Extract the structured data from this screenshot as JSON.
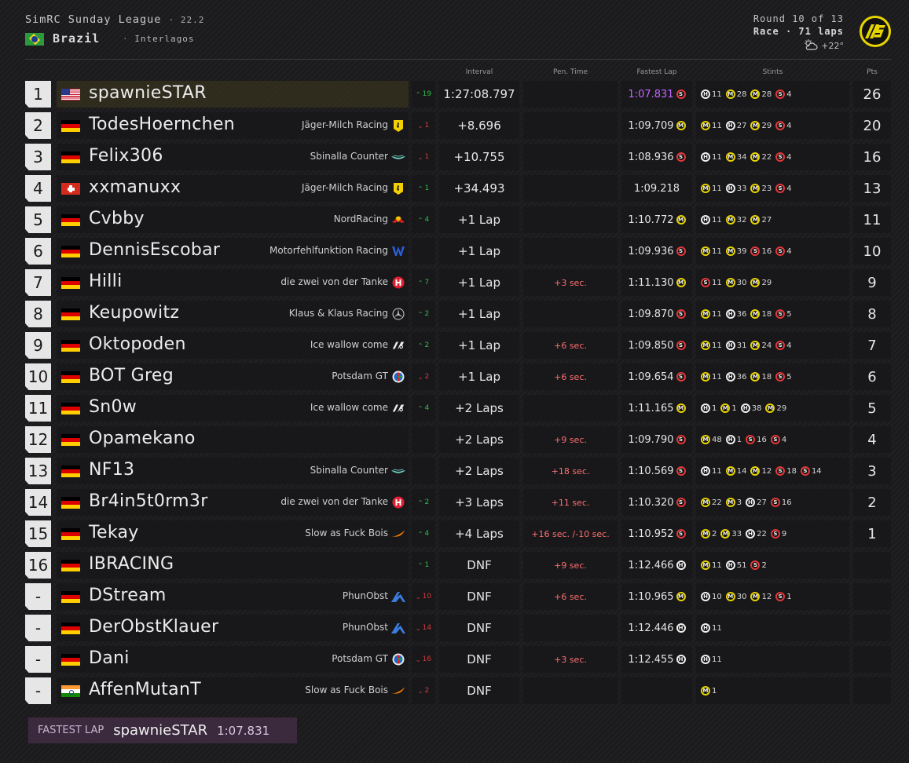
{
  "header": {
    "league": "SimRC Sunday League",
    "season": "· 22.2",
    "country": "Brazil",
    "track": "Interlagos",
    "round": "Round 10 of 13",
    "race": "Race · 71 laps",
    "weather_temp": "+22°",
    "weather_icon": "partly-cloudy-icon"
  },
  "columns": {
    "interval": "Interval",
    "penalty": "Pen. Time",
    "fastest": "Fastest Lap",
    "stints": "Stints",
    "points": "Pts"
  },
  "rows": [
    {
      "pos": "1",
      "flag": "us",
      "driver": "spawnieSTAR",
      "team": "",
      "team_icon": "",
      "chg_dir": "up",
      "chg": "19",
      "interval": "1:27:08.797",
      "penalty": "",
      "fastest": "1:07.831",
      "fl_tyre": "S",
      "fl_best": true,
      "stints": [
        [
          "H",
          "11"
        ],
        [
          "M",
          "28"
        ],
        [
          "M",
          "28"
        ],
        [
          "S",
          "4"
        ]
      ],
      "pts": "26"
    },
    {
      "pos": "2",
      "flag": "de",
      "driver": "TodesHoernchen",
      "team": "Jäger-Milch Racing",
      "team_icon": "ferrari",
      "chg_dir": "dn",
      "chg": "1",
      "interval": "+8.696",
      "penalty": "",
      "fastest": "1:09.709",
      "fl_tyre": "M",
      "stints": [
        [
          "M",
          "11"
        ],
        [
          "H",
          "27"
        ],
        [
          "M",
          "29"
        ],
        [
          "S",
          "4"
        ]
      ],
      "pts": "20"
    },
    {
      "pos": "3",
      "flag": "de",
      "driver": "Felix306",
      "team": "Sbinalla Counter",
      "team_icon": "astonmartin",
      "chg_dir": "dn",
      "chg": "1",
      "interval": "+10.755",
      "penalty": "",
      "fastest": "1:08.936",
      "fl_tyre": "S",
      "stints": [
        [
          "H",
          "11"
        ],
        [
          "M",
          "34"
        ],
        [
          "M",
          "22"
        ],
        [
          "S",
          "4"
        ]
      ],
      "pts": "16"
    },
    {
      "pos": "4",
      "flag": "ch",
      "driver": "xxmanuxx",
      "team": "Jäger-Milch Racing",
      "team_icon": "ferrari",
      "chg_dir": "up",
      "chg": "1",
      "interval": "+34.493",
      "penalty": "",
      "fastest": "1:09.218",
      "fl_tyre": "",
      "stints": [
        [
          "M",
          "11"
        ],
        [
          "H",
          "33"
        ],
        [
          "M",
          "23"
        ],
        [
          "S",
          "4"
        ]
      ],
      "pts": "13"
    },
    {
      "pos": "5",
      "flag": "de",
      "driver": "Cvbby",
      "team": "NordRacing",
      "team_icon": "redbull",
      "chg_dir": "up",
      "chg": "4",
      "interval": "+1 Lap",
      "penalty": "",
      "fastest": "1:10.772",
      "fl_tyre": "M",
      "stints": [
        [
          "H",
          "11"
        ],
        [
          "M",
          "32"
        ],
        [
          "M",
          "27"
        ]
      ],
      "pts": "11"
    },
    {
      "pos": "6",
      "flag": "de",
      "driver": "DennisEscobar",
      "team": "Motorfehlfunktion Racing",
      "team_icon": "williams",
      "chg_dir": "",
      "chg": "",
      "interval": "+1 Lap",
      "penalty": "",
      "fastest": "1:09.936",
      "fl_tyre": "S",
      "stints": [
        [
          "M",
          "11"
        ],
        [
          "M",
          "39"
        ],
        [
          "S",
          "16"
        ],
        [
          "S",
          "4"
        ]
      ],
      "pts": "10"
    },
    {
      "pos": "7",
      "flag": "de",
      "driver": "Hilli",
      "team": "die zwei von der Tanke",
      "team_icon": "haas",
      "chg_dir": "up",
      "chg": "7",
      "interval": "+1 Lap",
      "penalty": "+3 sec.",
      "fastest": "1:11.130",
      "fl_tyre": "M",
      "stints": [
        [
          "S",
          "11"
        ],
        [
          "M",
          "30"
        ],
        [
          "M",
          "29"
        ]
      ],
      "pts": "9"
    },
    {
      "pos": "8",
      "flag": "de",
      "driver": "Keupowitz",
      "team": "Klaus & Klaus Racing",
      "team_icon": "mercedes",
      "chg_dir": "up",
      "chg": "2",
      "interval": "+1 Lap",
      "penalty": "",
      "fastest": "1:09.870",
      "fl_tyre": "S",
      "stints": [
        [
          "M",
          "11"
        ],
        [
          "H",
          "36"
        ],
        [
          "M",
          "18"
        ],
        [
          "S",
          "5"
        ]
      ],
      "pts": "8"
    },
    {
      "pos": "9",
      "flag": "de",
      "driver": "Oktopoden",
      "team": "Ice wallow come",
      "team_icon": "alphatauri",
      "chg_dir": "up",
      "chg": "2",
      "interval": "+1 Lap",
      "penalty": "+6 sec.",
      "fastest": "1:09.850",
      "fl_tyre": "S",
      "stints": [
        [
          "M",
          "11"
        ],
        [
          "H",
          "31"
        ],
        [
          "M",
          "24"
        ],
        [
          "S",
          "4"
        ]
      ],
      "pts": "7"
    },
    {
      "pos": "10",
      "flag": "de",
      "driver": "BOT Greg",
      "team": "Potsdam GT",
      "team_icon": "alfaromeo",
      "chg_dir": "dn",
      "chg": "2",
      "interval": "+1 Lap",
      "penalty": "+6 sec.",
      "fastest": "1:09.654",
      "fl_tyre": "S",
      "stints": [
        [
          "M",
          "11"
        ],
        [
          "H",
          "36"
        ],
        [
          "M",
          "18"
        ],
        [
          "S",
          "5"
        ]
      ],
      "pts": "6"
    },
    {
      "pos": "11",
      "flag": "de",
      "driver": "Sn0w",
      "team": "Ice wallow come",
      "team_icon": "alphatauri",
      "chg_dir": "up",
      "chg": "4",
      "interval": "+2 Laps",
      "penalty": "",
      "fastest": "1:11.165",
      "fl_tyre": "M",
      "stints": [
        [
          "H",
          "1"
        ],
        [
          "M",
          "1"
        ],
        [
          "H",
          "38"
        ],
        [
          "M",
          "29"
        ]
      ],
      "pts": "5"
    },
    {
      "pos": "12",
      "flag": "de",
      "driver": "Opamekano",
      "team": "",
      "team_icon": "",
      "chg_dir": "",
      "chg": "",
      "interval": "+2 Laps",
      "penalty": "+9 sec.",
      "fastest": "1:09.790",
      "fl_tyre": "S",
      "stints": [
        [
          "M",
          "48"
        ],
        [
          "H",
          "1"
        ],
        [
          "S",
          "16"
        ],
        [
          "S",
          "4"
        ]
      ],
      "pts": "4"
    },
    {
      "pos": "13",
      "flag": "de",
      "driver": "NF13",
      "team": "Sbinalla Counter",
      "team_icon": "astonmartin",
      "chg_dir": "",
      "chg": "",
      "interval": "+2 Laps",
      "penalty": "+18 sec.",
      "fastest": "1:10.569",
      "fl_tyre": "S",
      "stints": [
        [
          "H",
          "11"
        ],
        [
          "M",
          "14"
        ],
        [
          "M",
          "12"
        ],
        [
          "S",
          "18"
        ],
        [
          "S",
          "14"
        ]
      ],
      "pts": "3"
    },
    {
      "pos": "14",
      "flag": "de",
      "driver": "Br4in5t0rm3r",
      "team": "die zwei von der Tanke",
      "team_icon": "haas",
      "chg_dir": "up",
      "chg": "2",
      "interval": "+3 Laps",
      "penalty": "+11 sec.",
      "fastest": "1:10.320",
      "fl_tyre": "S",
      "stints": [
        [
          "M",
          "22"
        ],
        [
          "M",
          "3"
        ],
        [
          "H",
          "27"
        ],
        [
          "S",
          "16"
        ]
      ],
      "pts": "2"
    },
    {
      "pos": "15",
      "flag": "de",
      "driver": "Tekay",
      "team": "Slow as Fuck Bois",
      "team_icon": "mclaren",
      "chg_dir": "up",
      "chg": "4",
      "interval": "+4 Laps",
      "penalty": "+16 sec. /-10 sec.",
      "fastest": "1:10.952",
      "fl_tyre": "S",
      "stints": [
        [
          "M",
          "2"
        ],
        [
          "M",
          "33"
        ],
        [
          "H",
          "22"
        ],
        [
          "S",
          "9"
        ]
      ],
      "pts": "1"
    },
    {
      "pos": "16",
      "flag": "de",
      "driver": "IBRACING",
      "team": "",
      "team_icon": "",
      "chg_dir": "up",
      "chg": "1",
      "interval": "DNF",
      "penalty": "+9 sec.",
      "fastest": "1:12.466",
      "fl_tyre": "H",
      "stints": [
        [
          "M",
          "11"
        ],
        [
          "H",
          "51"
        ],
        [
          "S",
          "2"
        ]
      ],
      "pts": ""
    },
    {
      "pos": "-",
      "flag": "de",
      "driver": "DStream",
      "team": "PhunObst",
      "team_icon": "alpine",
      "chg_dir": "dn",
      "chg": "10",
      "interval": "DNF",
      "penalty": "+6 sec.",
      "fastest": "1:10.965",
      "fl_tyre": "M",
      "stints": [
        [
          "H",
          "10"
        ],
        [
          "M",
          "30"
        ],
        [
          "M",
          "12"
        ],
        [
          "S",
          "1"
        ]
      ],
      "pts": ""
    },
    {
      "pos": "-",
      "flag": "de",
      "driver": "DerObstKlauer",
      "team": "PhunObst",
      "team_icon": "alpine",
      "chg_dir": "dn",
      "chg": "14",
      "interval": "DNF",
      "penalty": "",
      "fastest": "1:12.446",
      "fl_tyre": "H",
      "stints": [
        [
          "H",
          "11"
        ]
      ],
      "pts": ""
    },
    {
      "pos": "-",
      "flag": "de",
      "driver": "Dani",
      "team": "Potsdam GT",
      "team_icon": "alfaromeo",
      "chg_dir": "dn",
      "chg": "16",
      "interval": "DNF",
      "penalty": "+3 sec.",
      "fastest": "1:12.455",
      "fl_tyre": "H",
      "stints": [
        [
          "H",
          "11"
        ]
      ],
      "pts": ""
    },
    {
      "pos": "-",
      "flag": "in",
      "driver": "AffenMutanT",
      "team": "Slow as Fuck Bois",
      "team_icon": "mclaren",
      "chg_dir": "dn",
      "chg": "2",
      "interval": "DNF",
      "penalty": "",
      "fastest": "",
      "fl_tyre": "",
      "stints": [
        [
          "M",
          "1"
        ]
      ],
      "pts": ""
    }
  ],
  "fastest_lap": {
    "label": "FASTEST LAP",
    "driver": "spawnieSTAR",
    "time": "1:07.831"
  },
  "colors": {
    "soft": "#e5373a",
    "medium": "#e8d400",
    "hard": "#f0f0f0",
    "fastest_purple": "#c266ff",
    "gain": "#2fbf4a",
    "loss": "#d63a3a"
  }
}
